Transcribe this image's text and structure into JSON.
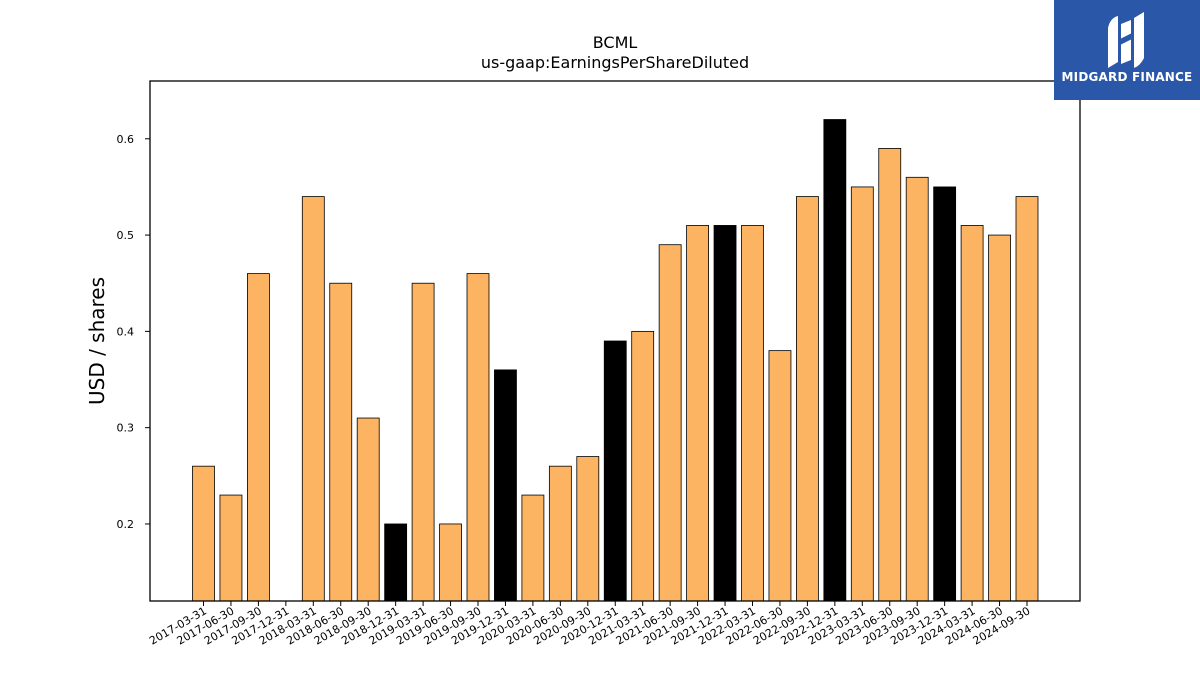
{
  "brand": {
    "name": "MIDGARD FINANCE",
    "bg_color": "#2b57a8"
  },
  "chart_data": {
    "type": "bar",
    "title": "BCML",
    "subtitle": "us-gaap:EarningsPerShareDiluted",
    "xlabel": "",
    "ylabel": "USD / shares",
    "ylim": [
      0.12,
      0.66
    ],
    "yticks": [
      0.2,
      0.3,
      0.4,
      0.5,
      0.6
    ],
    "grid": false,
    "colors": {
      "default": "#fdb462",
      "highlight": "#000000",
      "edge": "#000000"
    },
    "categories": [
      "2017-03-31",
      "2017-06-30",
      "2017-09-30",
      "2017-12-31",
      "2018-03-31",
      "2018-06-30",
      "2018-09-30",
      "2018-12-31",
      "2019-03-31",
      "2019-06-30",
      "2019-09-30",
      "2019-12-31",
      "2020-03-31",
      "2020-06-30",
      "2020-09-30",
      "2020-12-31",
      "2021-03-31",
      "2021-06-30",
      "2021-09-30",
      "2021-12-31",
      "2022-03-31",
      "2022-06-30",
      "2022-09-30",
      "2022-12-31",
      "2023-03-31",
      "2023-06-30",
      "2023-09-30",
      "2023-12-31",
      "2024-03-31",
      "2024-06-30",
      "2024-09-30"
    ],
    "values": [
      0.26,
      0.23,
      0.46,
      null,
      0.54,
      0.45,
      0.31,
      0.2,
      0.45,
      0.2,
      0.46,
      0.36,
      0.23,
      0.26,
      0.27,
      0.39,
      0.4,
      0.49,
      0.51,
      0.51,
      0.51,
      0.38,
      0.54,
      0.62,
      0.55,
      0.59,
      0.56,
      0.55,
      0.51,
      0.5,
      0.54
    ],
    "highlighted": [
      false,
      false,
      false,
      false,
      false,
      false,
      false,
      true,
      false,
      false,
      false,
      true,
      false,
      false,
      false,
      true,
      false,
      false,
      false,
      true,
      false,
      false,
      false,
      true,
      false,
      false,
      false,
      true,
      false,
      false,
      false
    ]
  }
}
